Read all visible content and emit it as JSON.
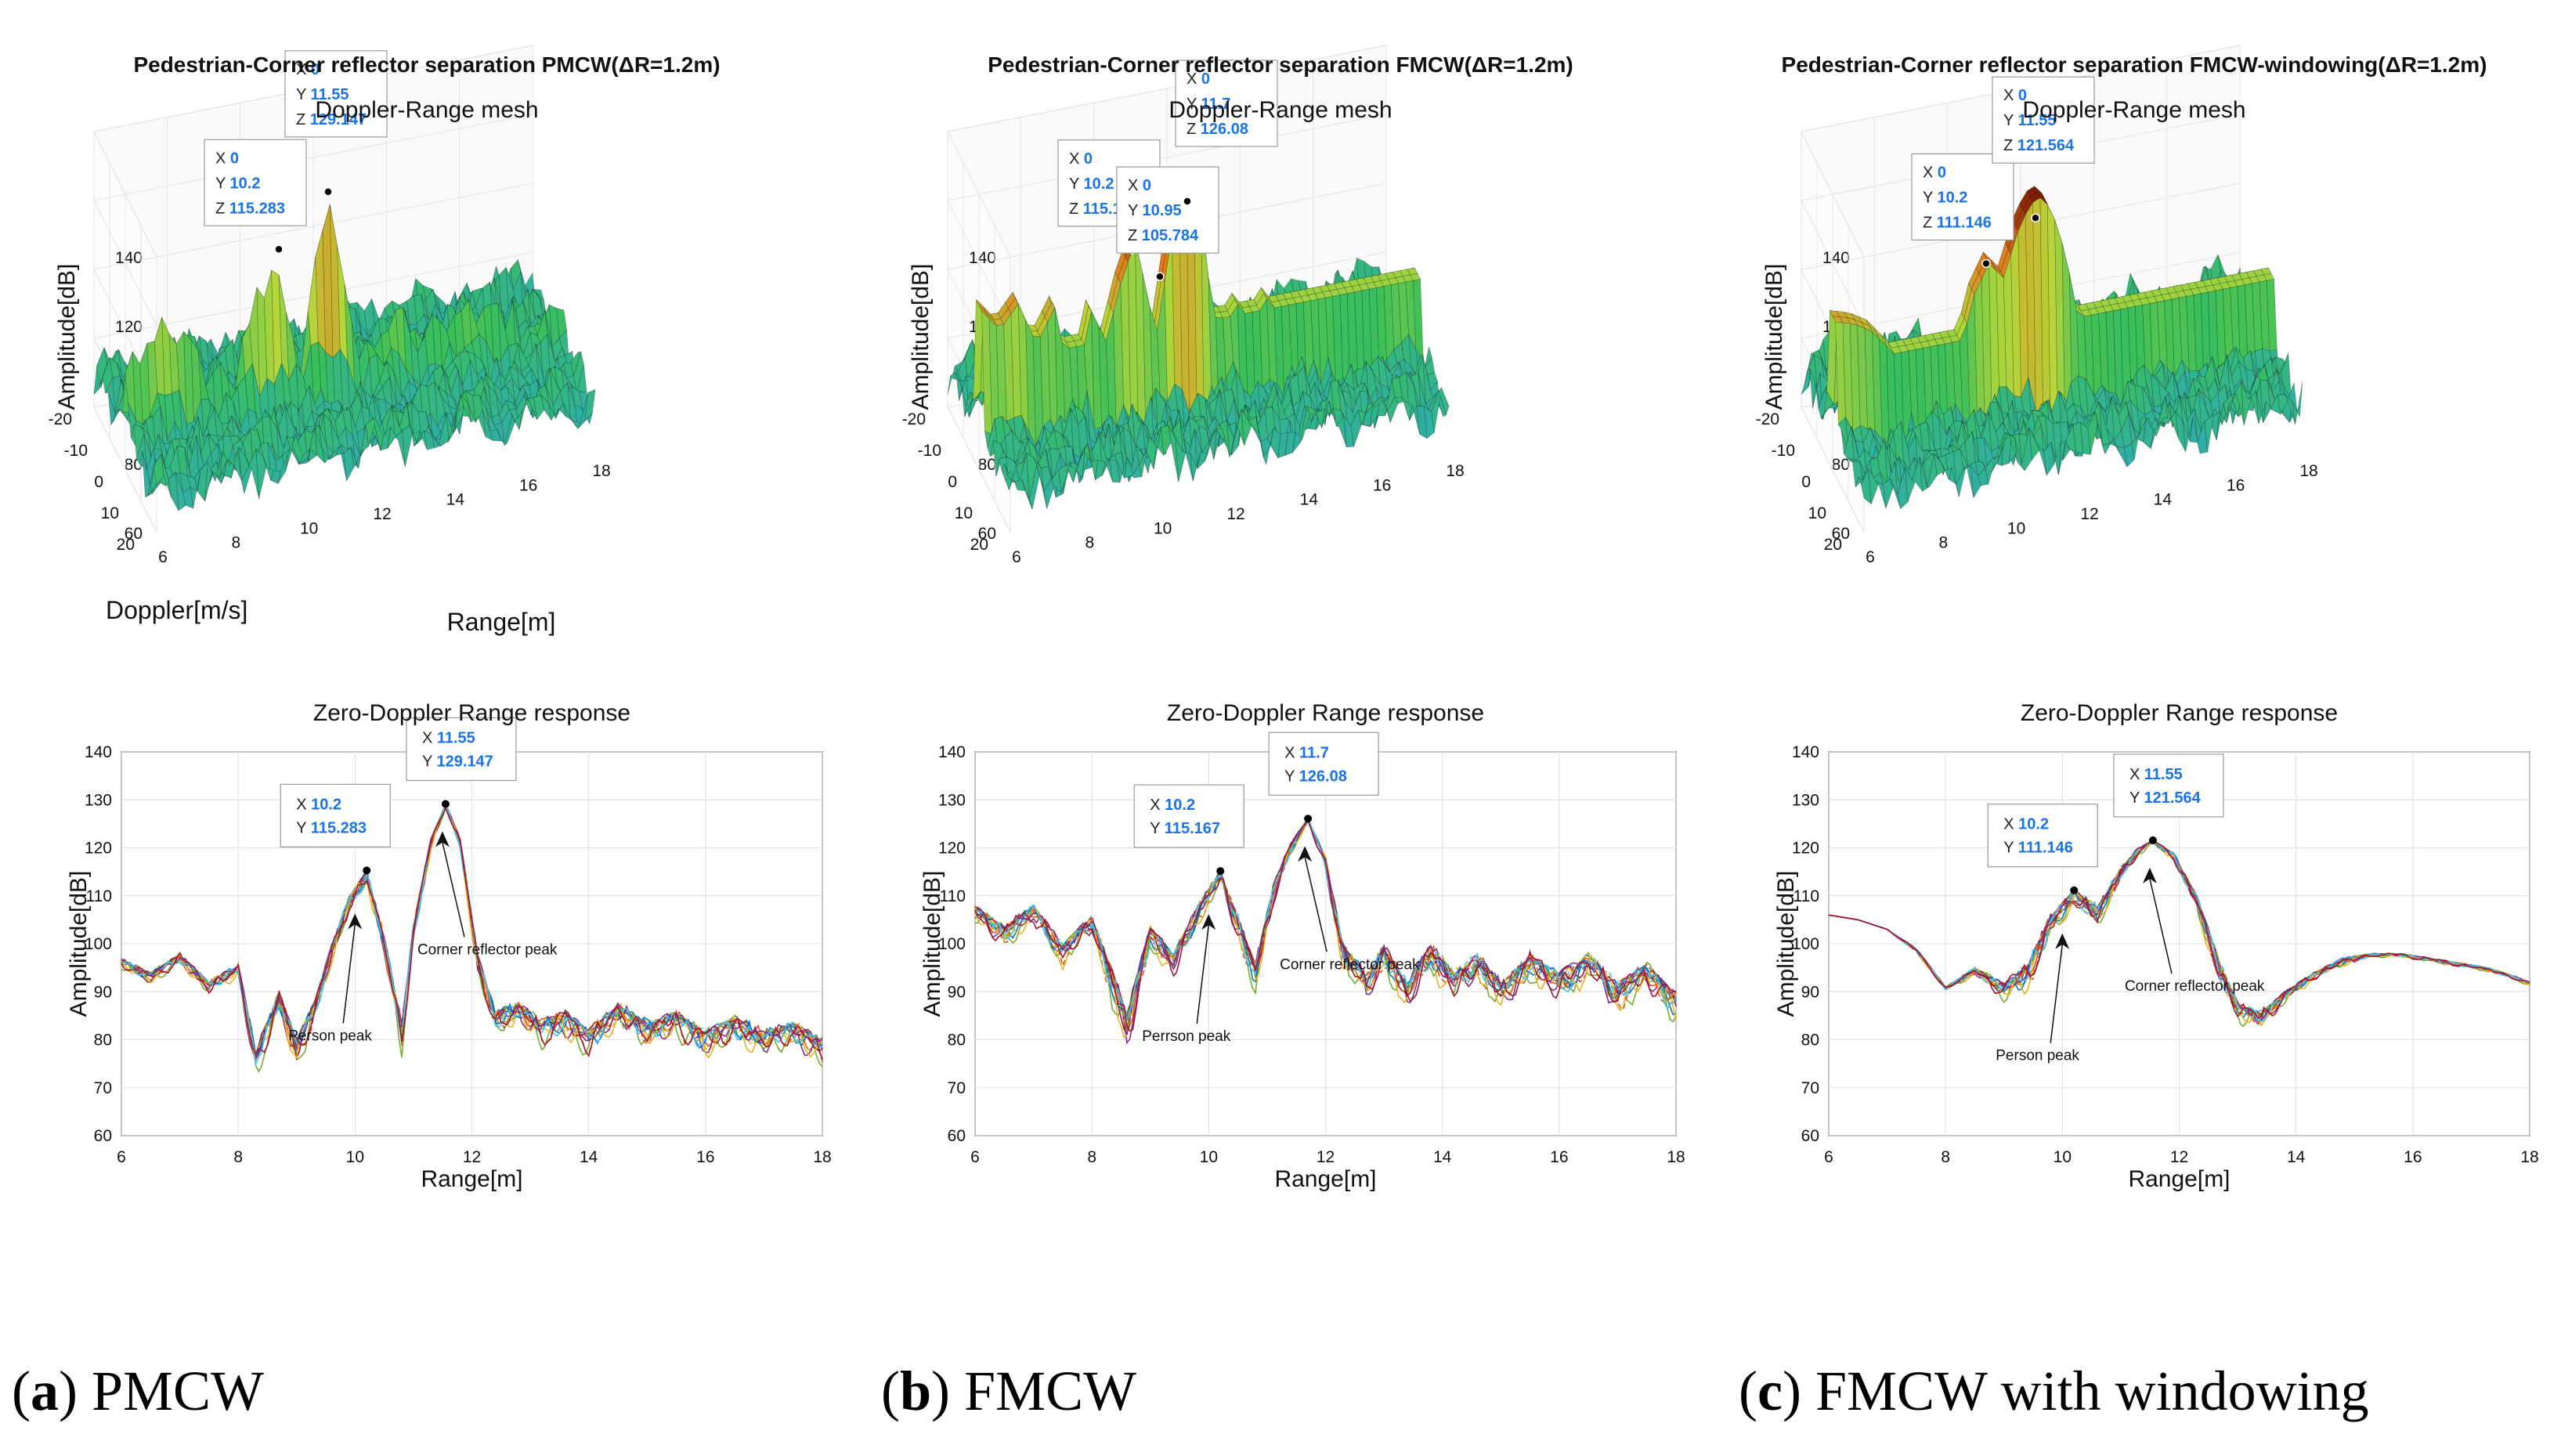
{
  "colors": {
    "surface_low": "#3bbf5a",
    "surface_mid": "#b7d63a",
    "surface_high": "#e0791f",
    "surface_peak": "#7a1405",
    "datatip_x": "#000000",
    "datatip_value": "#1a73e8"
  },
  "panels": [
    {
      "caption_letter": "a",
      "caption_text": "PMCW",
      "mesh": {
        "title": "Pedestrian-Corner reflector separation PMCW(ΔR=1.2m)",
        "subtitle": "Doppler-Range mesh",
        "zlabel": "Amplitude[dB]",
        "xlabel": "Range[m]",
        "ylabel": "Doppler[m/s]",
        "zticks": [
          "60",
          "80",
          "100",
          "120",
          "140"
        ],
        "rticks": [
          "6",
          "8",
          "10",
          "12",
          "14",
          "16",
          "18"
        ],
        "dticks": [
          "-20",
          "-10",
          "0",
          "10",
          "20"
        ],
        "datatips": [
          {
            "X": "0",
            "Y": "10.2",
            "Z": "115.283"
          },
          {
            "X": "0",
            "Y": "11.55",
            "Z": "129.147"
          }
        ]
      },
      "cut": {
        "title": "Zero-Doppler Range response",
        "xlabel": "Range[m]",
        "ylabel": "Amplitude[dB]",
        "annot_person": "Person peak",
        "annot_corner": "Corner reflector peak",
        "datatips": [
          {
            "X": "10.2",
            "Y": "115.283"
          },
          {
            "X": "11.55",
            "Y": "129.147"
          }
        ]
      },
      "chart_data": {
        "type": "line",
        "x_range": [
          6,
          18
        ],
        "ylim": [
          60,
          140
        ],
        "x_ticks": [
          6,
          8,
          10,
          12,
          14,
          16,
          18
        ],
        "y_ticks": [
          60,
          70,
          80,
          90,
          100,
          110,
          120,
          130,
          140
        ],
        "curve_count": 14,
        "envelope": {
          "x": [
            6,
            6.5,
            7,
            7.5,
            8,
            8.3,
            8.7,
            9,
            9.3,
            9.6,
            9.9,
            10.2,
            10.5,
            10.8,
            11,
            11.3,
            11.55,
            11.8,
            12.1,
            12.4,
            12.8,
            13.2,
            13.6,
            14,
            14.5,
            15,
            15.5,
            16,
            16.5,
            17,
            17.5,
            18
          ],
          "y": [
            97,
            94,
            98,
            92,
            96,
            78,
            90,
            80,
            88,
            100,
            110,
            115.3,
            102,
            83,
            104,
            122,
            129.1,
            122,
            98,
            86,
            88,
            84,
            86,
            82,
            88,
            84,
            86,
            82,
            85,
            82,
            84,
            80
          ]
        },
        "spread": [
          3,
          3,
          3,
          3,
          4,
          9,
          5,
          8,
          6,
          5,
          5,
          4,
          6,
          8,
          5,
          3,
          1,
          3,
          6,
          7,
          6,
          7,
          7,
          7,
          7,
          7,
          7,
          7,
          7,
          7,
          7,
          7
        ],
        "peaks": [
          {
            "x": 10.2,
            "y": 115.283
          },
          {
            "x": 11.55,
            "y": 129.147
          }
        ]
      }
    },
    {
      "caption_letter": "b",
      "caption_text": "FMCW",
      "mesh": {
        "title": "Pedestrian-Corner reflector separation FMCW(ΔR=1.2m)",
        "subtitle": "Doppler-Range mesh",
        "zlabel": "Amplitude[dB]",
        "xlabel": "",
        "ylabel": "",
        "zticks": [
          "60",
          "80",
          "100",
          "120",
          "140"
        ],
        "rticks": [
          "6",
          "8",
          "10",
          "12",
          "14",
          "16",
          "18"
        ],
        "dticks": [
          "-20",
          "-10",
          "0",
          "10",
          "20"
        ],
        "datatips": [
          {
            "X": "0",
            "Y": "10.2",
            "Z": "115.167"
          },
          {
            "X": "0",
            "Y": "10.95",
            "Z": "105.784"
          },
          {
            "X": "0",
            "Y": "11.7",
            "Z": "126.08"
          }
        ]
      },
      "cut": {
        "title": "Zero-Doppler Range response",
        "xlabel": "Range[m]",
        "ylabel": "Amplitude[dB]",
        "annot_person": "Perrson peak",
        "annot_corner": "Corner reflector peak",
        "datatips": [
          {
            "X": "10.2",
            "Y": "115.167"
          },
          {
            "X": "11.7",
            "Y": "126.08"
          }
        ]
      },
      "chart_data": {
        "type": "line",
        "x_range": [
          6,
          18
        ],
        "ylim": [
          60,
          140
        ],
        "x_ticks": [
          6,
          8,
          10,
          12,
          14,
          16,
          18
        ],
        "y_ticks": [
          60,
          70,
          80,
          90,
          100,
          110,
          120,
          130,
          140
        ],
        "curve_count": 14,
        "envelope": {
          "x": [
            6,
            6.5,
            7,
            7.5,
            8,
            8.3,
            8.6,
            9,
            9.4,
            9.8,
            10.2,
            10.5,
            10.8,
            11.1,
            11.4,
            11.7,
            12,
            12.3,
            12.7,
            13,
            13.4,
            13.8,
            14.2,
            14.6,
            15,
            15.5,
            16,
            16.5,
            17,
            17.5,
            18
          ],
          "y": [
            108,
            104,
            108,
            100,
            106,
            96,
            86,
            104,
            98,
            108,
            115.2,
            106,
            96,
            112,
            121,
            126.1,
            118,
            100,
            94,
            100,
            92,
            100,
            94,
            98,
            92,
            98,
            94,
            98,
            92,
            96,
            90
          ],
          "note_y": null
        },
        "spread": [
          5,
          6,
          5,
          6,
          5,
          8,
          12,
          6,
          7,
          6,
          4,
          7,
          8,
          5,
          3,
          1,
          4,
          7,
          8,
          7,
          8,
          7,
          8,
          7,
          8,
          7,
          8,
          7,
          8,
          7,
          8
        ],
        "peaks": [
          {
            "x": 10.2,
            "y": 115.167
          },
          {
            "x": 11.7,
            "y": 126.08
          }
        ]
      }
    },
    {
      "caption_letter": "c",
      "caption_text": "FMCW with windowing",
      "mesh": {
        "title": "Pedestrian-Corner reflector separation FMCW-windowing(ΔR=1.2m)",
        "subtitle": "Doppler-Range mesh",
        "zlabel": "Amplitude[dB]",
        "xlabel": "",
        "ylabel": "",
        "zticks": [
          "60",
          "80",
          "100",
          "120",
          "140"
        ],
        "rticks": [
          "6",
          "8",
          "10",
          "12",
          "14",
          "16",
          "18"
        ],
        "dticks": [
          "-20",
          "-10",
          "0",
          "10",
          "20"
        ],
        "datatips": [
          {
            "X": "0",
            "Y": "10.2",
            "Z": "111.146"
          },
          {
            "X": "0",
            "Y": "11.55",
            "Z": "121.564"
          }
        ]
      },
      "cut": {
        "title": "Zero-Doppler Range response",
        "xlabel": "Range[m]",
        "ylabel": "Amplitude[dB]",
        "annot_person": "Person peak",
        "annot_corner": "Corner reflector peak",
        "datatips": [
          {
            "X": "10.2",
            "Y": "111.146"
          },
          {
            "X": "11.55",
            "Y": "121.564"
          }
        ]
      },
      "chart_data": {
        "type": "line",
        "x_range": [
          6,
          18
        ],
        "ylim": [
          60,
          140
        ],
        "x_ticks": [
          6,
          8,
          10,
          12,
          14,
          16,
          18
        ],
        "y_ticks": [
          60,
          70,
          80,
          90,
          100,
          110,
          120,
          130,
          140
        ],
        "curve_count": 14,
        "envelope": {
          "x": [
            6,
            6.5,
            7,
            7.5,
            8,
            8.5,
            9,
            9.4,
            9.8,
            10.2,
            10.6,
            11,
            11.3,
            11.55,
            11.9,
            12.3,
            12.7,
            13,
            13.4,
            13.8,
            14.3,
            14.8,
            15.3,
            15.8,
            16.3,
            16.8,
            17.3,
            17.8,
            18
          ],
          "y": [
            106,
            105,
            103,
            99,
            91,
            95,
            92,
            96,
            106,
            111.1,
            108,
            116,
            120,
            121.6,
            119,
            110,
            96,
            88,
            86,
            90,
            94,
            97,
            98,
            98,
            97,
            96,
            95,
            93,
            92
          ],
          "note_y": null
        },
        "spread": [
          0,
          0,
          0,
          1,
          1,
          2,
          5,
          8,
          6,
          4,
          6,
          4,
          2,
          1,
          2,
          4,
          6,
          5,
          5,
          3,
          2,
          2,
          1,
          1,
          1,
          1,
          1,
          1,
          1
        ],
        "peaks": [
          {
            "x": 10.2,
            "y": 111.146
          },
          {
            "x": 11.55,
            "y": 121.564
          }
        ]
      }
    }
  ]
}
